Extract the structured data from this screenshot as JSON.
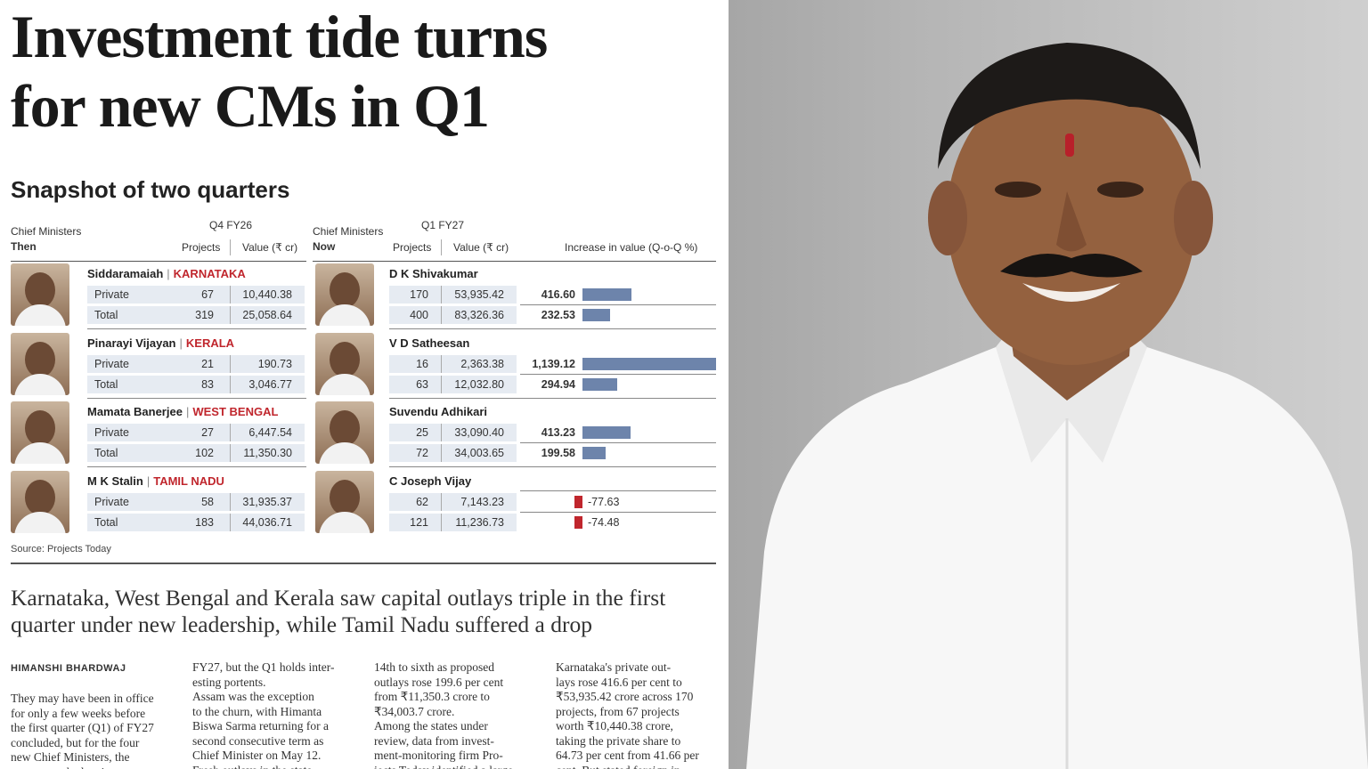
{
  "headline": {
    "line1": "Investment tide turns",
    "line2": "for new CMs in Q1"
  },
  "snapshot_title": "Snapshot of two quarters",
  "table": {
    "then_label1": "Chief Ministers",
    "then_label2": "Then",
    "now_label1": "Chief Ministers",
    "now_label2": "Now",
    "q4": "Q4 FY26",
    "q1": "Q1 FY27",
    "projects": "Projects",
    "value": "Value (₹ cr)",
    "increase": "Increase in value (Q-o-Q %)",
    "private_label": "Private",
    "total_label": "Total",
    "rows": [
      {
        "then_cm": "Siddaramaiah",
        "state": "KARNATAKA",
        "now_cm": "D K Shivakumar",
        "p_then_proj": "67",
        "p_then_val": "10,440.38",
        "t_then_proj": "319",
        "t_then_val": "25,058.64",
        "p_now_proj": "170",
        "p_now_val": "53,935.42",
        "t_now_proj": "400",
        "t_now_val": "83,326.36",
        "p_inc": "416.60",
        "t_inc": "232.53",
        "p_inc_num": 416.6,
        "t_inc_num": 232.53
      },
      {
        "then_cm": "Pinarayi Vijayan",
        "state": "KERALA",
        "now_cm": "V D Satheesan",
        "p_then_proj": "21",
        "p_then_val": "190.73",
        "t_then_proj": "83",
        "t_then_val": "3,046.77",
        "p_now_proj": "16",
        "p_now_val": "2,363.38",
        "t_now_proj": "63",
        "t_now_val": "12,032.80",
        "p_inc": "1,139.12",
        "t_inc": "294.94",
        "p_inc_num": 1139.12,
        "t_inc_num": 294.94
      },
      {
        "then_cm": "Mamata Banerjee",
        "state": "WEST BENGAL",
        "now_cm": "Suvendu Adhikari",
        "p_then_proj": "27",
        "p_then_val": "6,447.54",
        "t_then_proj": "102",
        "t_then_val": "11,350.30",
        "p_now_proj": "25",
        "p_now_val": "33,090.40",
        "t_now_proj": "72",
        "t_now_val": "34,003.65",
        "p_inc": "413.23",
        "t_inc": "199.58",
        "p_inc_num": 413.23,
        "t_inc_num": 199.58
      },
      {
        "then_cm": "M K Stalin",
        "state": "TAMIL NADU",
        "now_cm": "C Joseph Vijay",
        "p_then_proj": "58",
        "p_then_val": "31,935.37",
        "t_then_proj": "183",
        "t_then_val": "44,036.71",
        "p_now_proj": "62",
        "p_now_val": "7,143.23",
        "t_now_proj": "121",
        "t_now_val": "11,236.73",
        "p_inc": "-77.63",
        "t_inc": "-74.48",
        "p_inc_num": -77.63,
        "t_inc_num": -74.48
      }
    ],
    "source": "Source: Projects Today"
  },
  "colors": {
    "state": "#c0262d",
    "bar_pos": "#6d84ab",
    "bar_neg": "#c0262d"
  },
  "deck": "Karnataka, West Bengal and Kerala saw capital outlays triple in the first quarter under new leadership, while Tamil Nadu suffered a drop",
  "byline": "HIMANSHI BHARDWAJ",
  "columns": [
    "They may have been in office\nfor only a few weeks before\nthe first quarter (Q1) of FY27\nconcluded, but for the four\nnew Chief Ministers, the\nquarter marked an interest-",
    "FY27, but the Q1 holds inter-\nesting portents.\n   Assam was the exception\nto the churn, with Himanta\nBiswa Sarma returning for a\nsecond consecutive term as\nChief Minister on May 12.\nFresh outlays in the state",
    "14th to sixth as proposed\noutlays rose 199.6 per cent\nfrom ₹11,350.3 crore to\n₹34,003.7 crore.\n   Among the states under\nreview, data from invest-\nment-monitoring firm Pro-\njects Today identified a large",
    "   Karnataka's private out-\nlays rose 416.6 per cent to\n₹53,935.42 crore across 170\nprojects, from 67 projects\nworth ₹10,440.38 crore,\ntaking the private share to\n64.73 per cent from 41.66 per\ncent. But stated foreign in-"
  ]
}
